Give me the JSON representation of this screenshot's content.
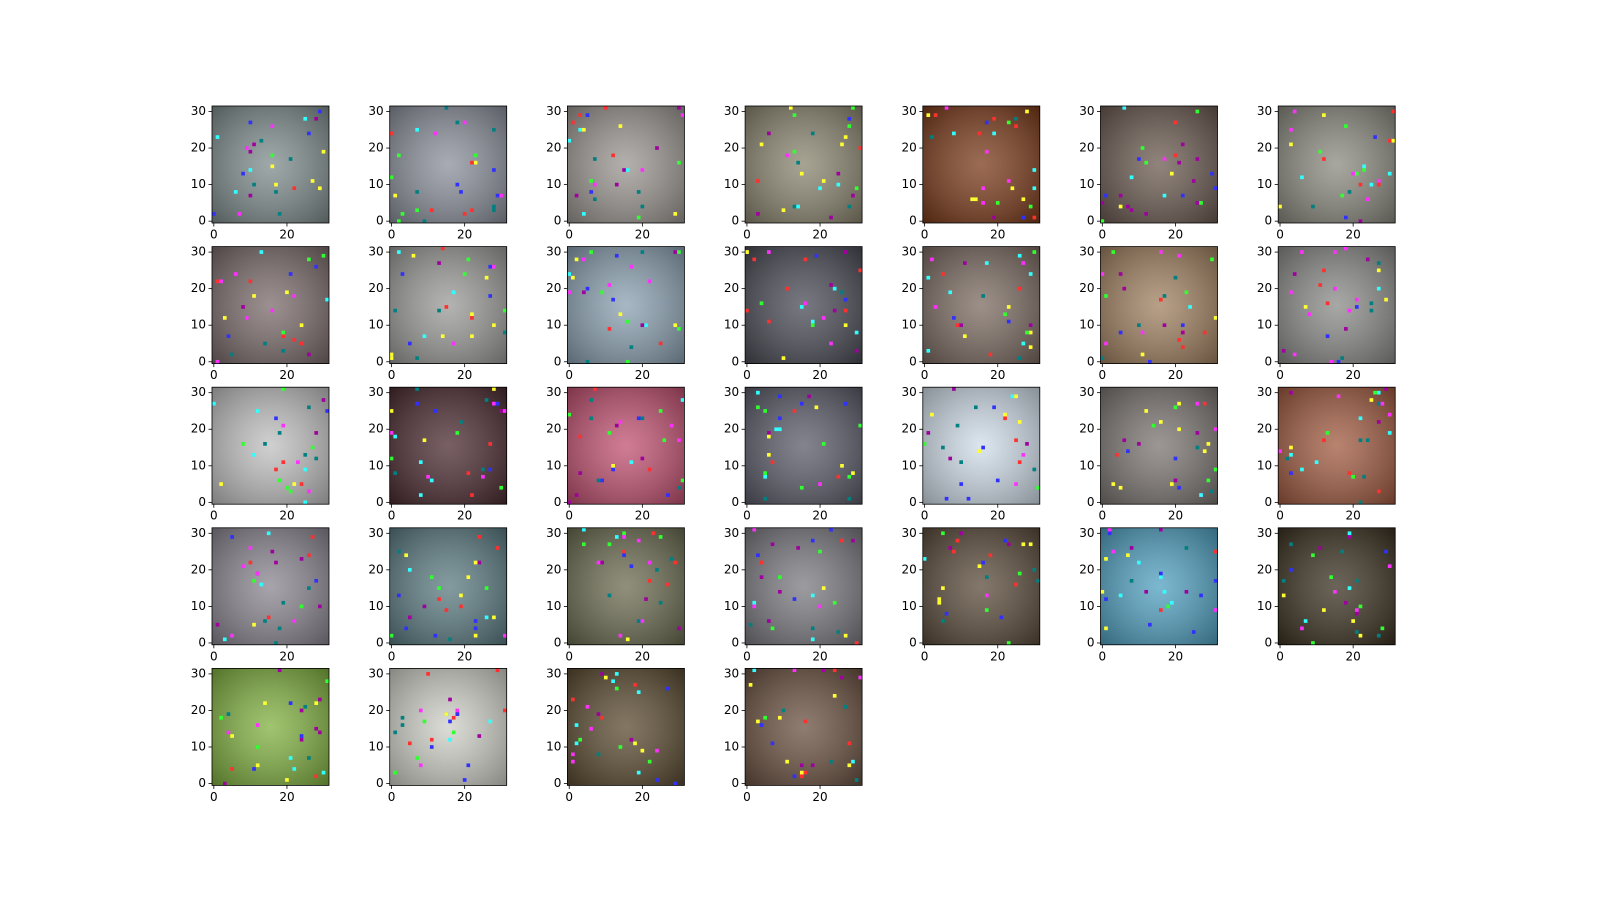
{
  "chart_data": [
    {
      "type": "image",
      "color": "#7f8c8c",
      "xlim": [
        -0.5,
        31.5
      ],
      "ylim": [
        31.5,
        -0.5
      ],
      "xticks": [
        0,
        20
      ],
      "yticks": [
        0,
        10,
        20,
        30
      ]
    },
    {
      "type": "image",
      "color": "#8a8f9a",
      "xlim": [
        -0.5,
        31.5
      ],
      "ylim": [
        31.5,
        -0.5
      ],
      "xticks": [
        0,
        20
      ],
      "yticks": [
        0,
        10,
        20,
        30
      ]
    },
    {
      "type": "image",
      "color": "#9a9590",
      "xlim": [
        -0.5,
        31.5
      ],
      "ylim": [
        31.5,
        -0.5
      ],
      "xticks": [
        0,
        20
      ],
      "yticks": [
        0,
        10,
        20,
        30
      ]
    },
    {
      "type": "image",
      "color": "#8a8570",
      "xlim": [
        -0.5,
        31.5
      ],
      "ylim": [
        31.5,
        -0.5
      ],
      "xticks": [
        0,
        20
      ],
      "yticks": [
        0,
        10,
        20,
        30
      ]
    },
    {
      "type": "image",
      "color": "#7a3a1a",
      "xlim": [
        -0.5,
        31.5
      ],
      "ylim": [
        31.5,
        -0.5
      ],
      "xticks": [
        0,
        20
      ],
      "yticks": [
        0,
        10,
        20,
        30
      ]
    },
    {
      "type": "image",
      "color": "#6a5a50",
      "xlim": [
        -0.5,
        31.5
      ],
      "ylim": [
        31.5,
        -0.5
      ],
      "xticks": [
        0,
        20
      ],
      "yticks": [
        0,
        10,
        20,
        30
      ]
    },
    {
      "type": "image",
      "color": "#8a8a80",
      "xlim": [
        -0.5,
        31.5
      ],
      "ylim": [
        31.5,
        -0.5
      ],
      "xticks": [
        0,
        20
      ],
      "yticks": [
        0,
        10,
        20,
        30
      ]
    },
    {
      "type": "image",
      "color": "#7a6a6a",
      "xlim": [
        -0.5,
        31.5
      ],
      "ylim": [
        31.5,
        -0.5
      ],
      "xticks": [
        0,
        20
      ],
      "yticks": [
        0,
        10,
        20,
        30
      ]
    },
    {
      "type": "image",
      "color": "#9a9a98",
      "xlim": [
        -0.5,
        31.5
      ],
      "ylim": [
        31.5,
        -0.5
      ],
      "xticks": [
        0,
        20
      ],
      "yticks": [
        0,
        10,
        20,
        30
      ]
    },
    {
      "type": "image",
      "color": "#8aa0b0",
      "xlim": [
        -0.5,
        31.5
      ],
      "ylim": [
        31.5,
        -0.5
      ],
      "xticks": [
        0,
        20
      ],
      "yticks": [
        0,
        10,
        20,
        30
      ]
    },
    {
      "type": "image",
      "color": "#4a4a55",
      "xlim": [
        -0.5,
        31.5
      ],
      "ylim": [
        31.5,
        -0.5
      ],
      "xticks": [
        0,
        20
      ],
      "yticks": [
        0,
        10,
        20,
        30
      ]
    },
    {
      "type": "image",
      "color": "#7a6a60",
      "xlim": [
        -0.5,
        31.5
      ],
      "ylim": [
        31.5,
        -0.5
      ],
      "xticks": [
        0,
        20
      ],
      "yticks": [
        0,
        10,
        20,
        30
      ]
    },
    {
      "type": "image",
      "color": "#a08060",
      "xlim": [
        -0.5,
        31.5
      ],
      "ylim": [
        31.5,
        -0.5
      ],
      "xticks": [
        0,
        20
      ],
      "yticks": [
        0,
        10,
        20,
        30
      ]
    },
    {
      "type": "image",
      "color": "#8a8a88",
      "xlim": [
        -0.5,
        31.5
      ],
      "ylim": [
        31.5,
        -0.5
      ],
      "xticks": [
        0,
        20
      ],
      "yticks": [
        0,
        10,
        20,
        30
      ]
    },
    {
      "type": "image",
      "color": "#c0c0c0",
      "xlim": [
        -0.5,
        31.5
      ],
      "ylim": [
        31.5,
        -0.5
      ],
      "xticks": [
        0,
        20
      ],
      "yticks": [
        0,
        10,
        20,
        30
      ]
    },
    {
      "type": "image",
      "color": "#4a2a30",
      "xlim": [
        -0.5,
        31.5
      ],
      "ylim": [
        31.5,
        -0.5
      ],
      "xticks": [
        0,
        20
      ],
      "yticks": [
        0,
        10,
        20,
        30
      ]
    },
    {
      "type": "image",
      "color": "#c05070",
      "xlim": [
        -0.5,
        31.5
      ],
      "ylim": [
        31.5,
        -0.5
      ],
      "xticks": [
        0,
        20
      ],
      "yticks": [
        0,
        10,
        20,
        30
      ]
    },
    {
      "type": "image",
      "color": "#5a5a68",
      "xlim": [
        -0.5,
        31.5
      ],
      "ylim": [
        31.5,
        -0.5
      ],
      "xticks": [
        0,
        20
      ],
      "yticks": [
        0,
        10,
        20,
        30
      ]
    },
    {
      "type": "image",
      "color": "#d0dde8",
      "xlim": [
        -0.5,
        31.5
      ],
      "ylim": [
        31.5,
        -0.5
      ],
      "xticks": [
        0,
        20
      ],
      "yticks": [
        0,
        10,
        20,
        30
      ]
    },
    {
      "type": "image",
      "color": "#7a7470",
      "xlim": [
        -0.5,
        31.5
      ],
      "ylim": [
        31.5,
        -0.5
      ],
      "xticks": [
        0,
        20
      ],
      "yticks": [
        0,
        10,
        20,
        30
      ]
    },
    {
      "type": "image",
      "color": "#a05a40",
      "xlim": [
        -0.5,
        31.5
      ],
      "ylim": [
        31.5,
        -0.5
      ],
      "xticks": [
        0,
        20
      ],
      "yticks": [
        0,
        10,
        20,
        30
      ]
    },
    {
      "type": "image",
      "color": "#8a8590",
      "xlim": [
        -0.5,
        31.5
      ],
      "ylim": [
        31.5,
        -0.5
      ],
      "xticks": [
        0,
        20
      ],
      "yticks": [
        0,
        10,
        20,
        30
      ]
    },
    {
      "type": "image",
      "color": "#5a7a80",
      "xlim": [
        -0.5,
        31.5
      ],
      "ylim": [
        31.5,
        -0.5
      ],
      "xticks": [
        0,
        20
      ],
      "yticks": [
        0,
        10,
        20,
        30
      ]
    },
    {
      "type": "image",
      "color": "#6a6a50",
      "xlim": [
        -0.5,
        31.5
      ],
      "ylim": [
        31.5,
        -0.5
      ],
      "xticks": [
        0,
        20
      ],
      "yticks": [
        0,
        10,
        20,
        30
      ]
    },
    {
      "type": "image",
      "color": "#7a7a80",
      "xlim": [
        -0.5,
        31.5
      ],
      "ylim": [
        31.5,
        -0.5
      ],
      "xticks": [
        0,
        20
      ],
      "yticks": [
        0,
        10,
        20,
        30
      ]
    },
    {
      "type": "image",
      "color": "#5a4a3a",
      "xlim": [
        -0.5,
        31.5
      ],
      "ylim": [
        31.5,
        -0.5
      ],
      "xticks": [
        0,
        20
      ],
      "yticks": [
        0,
        10,
        20,
        30
      ]
    },
    {
      "type": "image",
      "color": "#50a0c0",
      "xlim": [
        -0.5,
        31.5
      ],
      "ylim": [
        31.5,
        -0.5
      ],
      "xticks": [
        0,
        20
      ],
      "yticks": [
        0,
        10,
        20,
        30
      ]
    },
    {
      "type": "image",
      "color": "#3a3020",
      "xlim": [
        -0.5,
        31.5
      ],
      "ylim": [
        31.5,
        -0.5
      ],
      "xticks": [
        0,
        20
      ],
      "yticks": [
        0,
        10,
        20,
        30
      ]
    },
    {
      "type": "image",
      "color": "#80b040",
      "xlim": [
        -0.5,
        31.5
      ],
      "ylim": [
        31.5,
        -0.5
      ],
      "xticks": [
        0,
        20
      ],
      "yticks": [
        0,
        10,
        20,
        30
      ]
    },
    {
      "type": "image",
      "color": "#d0d0c8",
      "xlim": [
        -0.5,
        31.5
      ],
      "ylim": [
        31.5,
        -0.5
      ],
      "xticks": [
        0,
        20
      ],
      "yticks": [
        0,
        10,
        20,
        30
      ]
    },
    {
      "type": "image",
      "color": "#5a4a30",
      "xlim": [
        -0.5,
        31.5
      ],
      "ylim": [
        31.5,
        -0.5
      ],
      "xticks": [
        0,
        20
      ],
      "yticks": [
        0,
        10,
        20,
        30
      ]
    },
    {
      "type": "image",
      "color": "#6a5040",
      "xlim": [
        -0.5,
        31.5
      ],
      "ylim": [
        31.5,
        -0.5
      ],
      "xticks": [
        0,
        20
      ],
      "yticks": [
        0,
        10,
        20,
        30
      ]
    }
  ]
}
